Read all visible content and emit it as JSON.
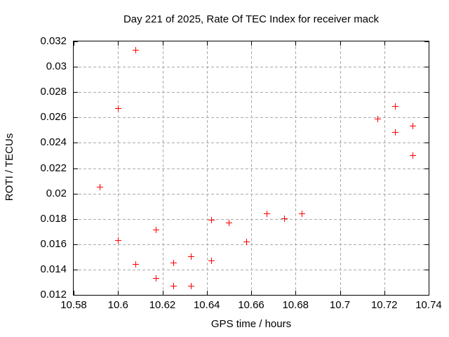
{
  "chart_data": {
    "type": "scatter",
    "title": "Day 221 of 2025, Rate Of TEC Index for receiver mack",
    "xlabel": "GPS time / hours",
    "ylabel": "ROTI / TECUs",
    "xlim": [
      10.58,
      10.74
    ],
    "ylim": [
      0.012,
      0.032
    ],
    "xticks": [
      "10.58",
      "10.6",
      "10.62",
      "10.64",
      "10.66",
      "10.68",
      "10.7",
      "10.72",
      "10.74"
    ],
    "yticks": [
      "0.012",
      "0.014",
      "0.016",
      "0.018",
      "0.02",
      "0.022",
      "0.024",
      "0.026",
      "0.028",
      "0.03",
      "0.032"
    ],
    "grid": true,
    "legend": false,
    "marker": "plus",
    "marker_color": "#ff0000",
    "grid_color": "#aaaaaa",
    "axis_color": "#000000",
    "background_color": "#ffffff",
    "points": [
      [
        10.592,
        0.0205
      ],
      [
        10.6,
        0.0267
      ],
      [
        10.6,
        0.0163
      ],
      [
        10.608,
        0.0313
      ],
      [
        10.608,
        0.0144
      ],
      [
        10.617,
        0.0171
      ],
      [
        10.617,
        0.0133
      ],
      [
        10.625,
        0.0145
      ],
      [
        10.625,
        0.0127
      ],
      [
        10.633,
        0.015
      ],
      [
        10.633,
        0.0127
      ],
      [
        10.642,
        0.0179
      ],
      [
        10.642,
        0.0147
      ],
      [
        10.65,
        0.0177
      ],
      [
        10.658,
        0.0162
      ],
      [
        10.667,
        0.0184
      ],
      [
        10.675,
        0.018
      ],
      [
        10.683,
        0.0184
      ],
      [
        10.717,
        0.0259
      ],
      [
        10.725,
        0.0269
      ],
      [
        10.725,
        0.0248
      ],
      [
        10.733,
        0.0253
      ],
      [
        10.733,
        0.023
      ]
    ]
  }
}
